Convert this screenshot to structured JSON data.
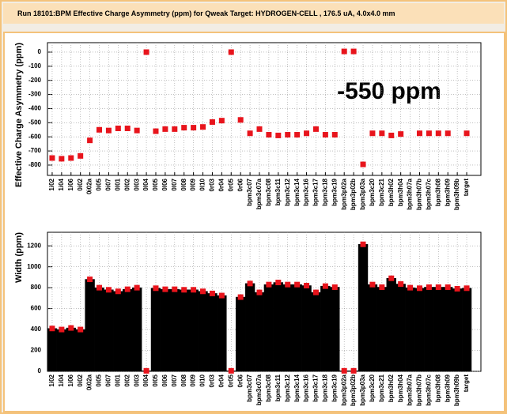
{
  "header": {
    "title": "Run  18101:BPM Effective Charge Asymmetry (ppm) for Qweak Target: HYDROGEN-CELL , 176.5 uA, 4.0x4.0 mm"
  },
  "chart_data": [
    {
      "type": "scatter",
      "ylabel": "Effective Charge Asymmetry (ppm)",
      "annotation": "-550 ppm",
      "color": "#e8141c",
      "grid": true,
      "categories": [
        "1i02",
        "1i04",
        "1i06",
        "0i02",
        "0i02a",
        "0i05",
        "0i07",
        "0l01",
        "0l02",
        "0l03",
        "0l04",
        "0l05",
        "0l06",
        "0l07",
        "0l08",
        "0l09",
        "0l10",
        "0r03",
        "0r04",
        "0r05",
        "0r06",
        "bpm3c07",
        "bpm3c07a",
        "bpm3c08",
        "bpm3c11",
        "bpm3c12",
        "bpm3c14",
        "bpm3c16",
        "bpm3c17",
        "bpm3c18",
        "bpm3c19",
        "bpm3p02a",
        "bpm3p02b",
        "bpm3p03a",
        "bpm3c20",
        "bpm3c21",
        "bpm3h02",
        "bpm3h04",
        "bpm3h07a",
        "bpm3h07b",
        "bpm3h07c",
        "bpm3h08",
        "bpm3h09",
        "bpm3h09b",
        "target"
      ],
      "values": [
        -750,
        -755,
        -750,
        -735,
        -625,
        -550,
        -555,
        -540,
        -540,
        -555,
        0,
        -560,
        -545,
        -545,
        -535,
        -535,
        -530,
        -495,
        -485,
        0,
        -480,
        -575,
        -545,
        -585,
        -590,
        -585,
        -585,
        -575,
        -545,
        -585,
        -585,
        5,
        5,
        -795,
        -575,
        -575,
        -590,
        -580,
        null,
        -575,
        -575,
        -575,
        -575,
        null,
        -575
      ],
      "ylim": [
        -873,
        67
      ],
      "yticks": [
        0,
        -100,
        -200,
        -300,
        -400,
        -500,
        -600,
        -700,
        -800
      ]
    },
    {
      "type": "bar",
      "ylabel": "Width (ppm)",
      "color": "#000000",
      "marker_color": "#e8141c",
      "grid": true,
      "categories": [
        "1i02",
        "1i04",
        "1i06",
        "0i02",
        "0i02a",
        "0i05",
        "0i07",
        "0l01",
        "0l02",
        "0l03",
        "0l04",
        "0l05",
        "0l06",
        "0l07",
        "0l08",
        "0l09",
        "0l10",
        "0r03",
        "0r04",
        "0r05",
        "0r06",
        "bpm3c07",
        "bpm3c07a",
        "bpm3c08",
        "bpm3c11",
        "bpm3c12",
        "bpm3c14",
        "bpm3c16",
        "bpm3c17",
        "bpm3c18",
        "bpm3c19",
        "bpm3p02a",
        "bpm3p02b",
        "bpm3p03a",
        "bpm3c20",
        "bpm3c21",
        "bpm3h02",
        "bpm3h04",
        "bpm3h07a",
        "bpm3h07b",
        "bpm3h07c",
        "bpm3h08",
        "bpm3h09",
        "bpm3h09b",
        "target"
      ],
      "values": [
        410,
        400,
        415,
        400,
        880,
        800,
        780,
        765,
        785,
        800,
        5,
        795,
        785,
        785,
        780,
        780,
        765,
        745,
        725,
        5,
        710,
        840,
        755,
        830,
        850,
        830,
        830,
        820,
        755,
        815,
        805,
        5,
        5,
        1215,
        830,
        805,
        890,
        835,
        800,
        795,
        805,
        805,
        805,
        790,
        795
      ],
      "ylim": [
        0,
        1330
      ],
      "yticks": [
        0,
        200,
        400,
        600,
        800,
        1000,
        1200
      ]
    }
  ]
}
